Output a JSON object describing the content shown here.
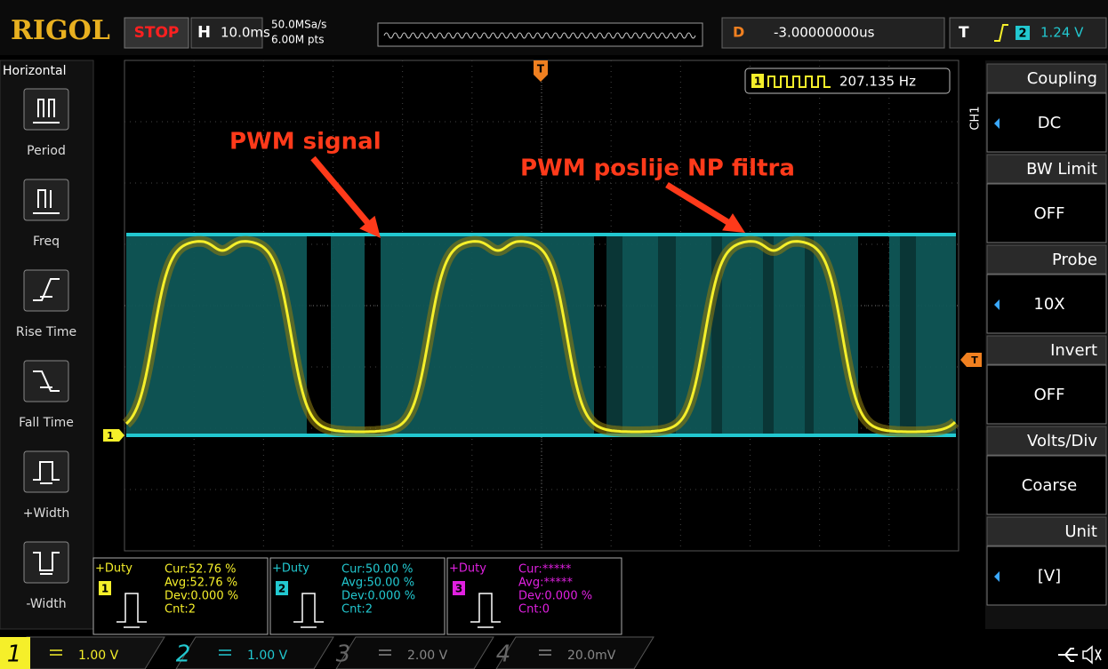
{
  "top_bar": {
    "brand": "RIGOL",
    "status": "STOP",
    "timebase_label": "H",
    "timebase": "10.0ms",
    "sample_rate": "50.0MSa/s",
    "memory_depth": "6.00M pts",
    "delay_label": "D",
    "delay": "-3.00000000us",
    "trigger_label": "T",
    "trigger_source": "2",
    "trigger_level": "1.24 V"
  },
  "left_menu": {
    "title": "Horizontal",
    "items": [
      "Period",
      "Freq",
      "Rise Time",
      "Fall Time",
      "+Width",
      "-Width"
    ]
  },
  "screen": {
    "trigger_position_marker": "T",
    "frequency_channel": "1",
    "frequency": "207.135 Hz",
    "channel_marker": "1",
    "trigger_marker": "T",
    "annotations": [
      "PWM signal",
      "PWM poslije NP filtra"
    ]
  },
  "right_menu": {
    "channel": "CH1",
    "items": [
      {
        "label": "Coupling",
        "value": "DC"
      },
      {
        "label": "BW Limit",
        "value": "OFF"
      },
      {
        "label": "Probe",
        "value": "10X"
      },
      {
        "label": "Invert",
        "value": "OFF"
      },
      {
        "label": "Volts/Div",
        "value": "Coarse"
      },
      {
        "label": "Unit",
        "value": "[V]"
      }
    ]
  },
  "measurements": [
    {
      "name": "+Duty",
      "channel": "1",
      "cur": "Cur:52.76 %",
      "avg": "Avg:52.76 %",
      "dev": "Dev:0.000 %",
      "cnt": "Cnt:2"
    },
    {
      "name": "+Duty",
      "channel": "2",
      "cur": "Cur:50.00 %",
      "avg": "Avg:50.00 %",
      "dev": "Dev:0.000 %",
      "cnt": "Cnt:2"
    },
    {
      "name": "+Duty",
      "channel": "3",
      "cur": "Cur:*****",
      "avg": "Avg:*****",
      "dev": "Dev:0.000 %",
      "cnt": "Cnt:0"
    }
  ],
  "channels": [
    {
      "number": "1",
      "scale": "1.00 V"
    },
    {
      "number": "2",
      "scale": "1.00 V"
    },
    {
      "number": "3",
      "scale": "2.00 V"
    },
    {
      "number": "4",
      "scale": "20.0mV"
    }
  ]
}
